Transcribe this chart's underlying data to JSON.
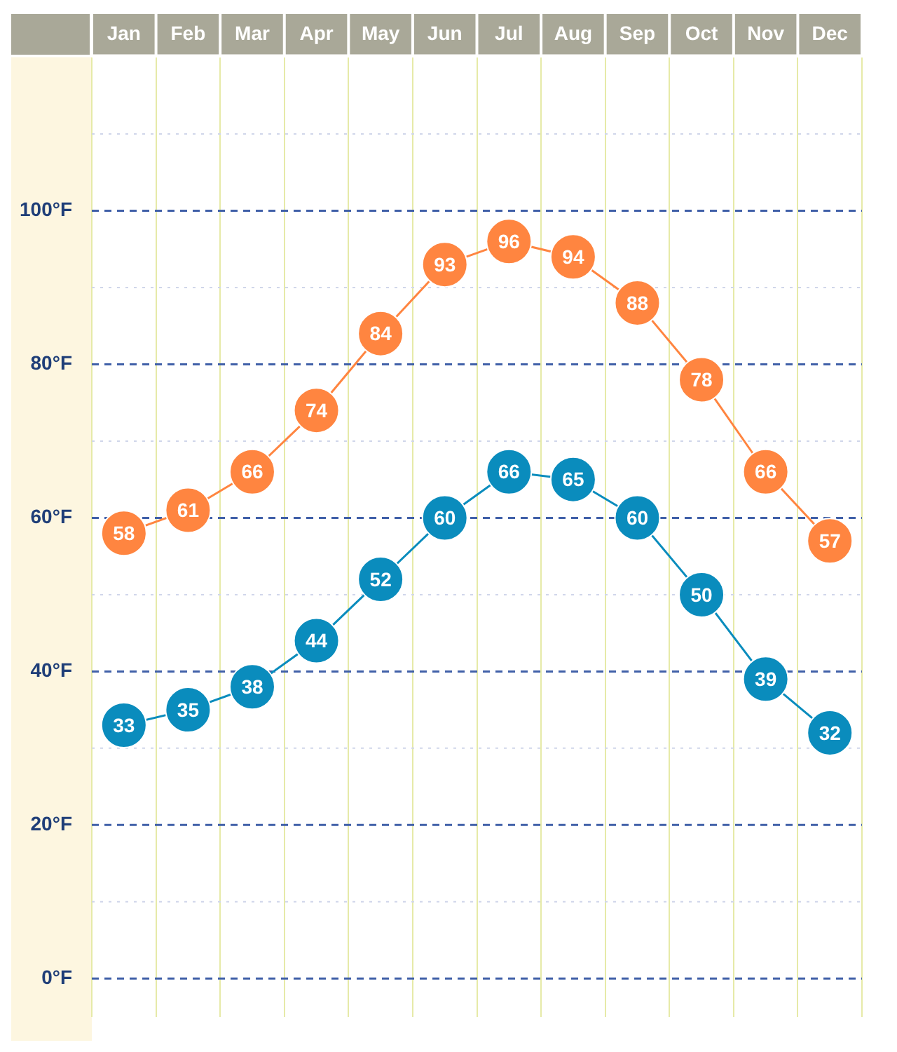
{
  "chart_data": {
    "type": "line",
    "categories": [
      "Jan",
      "Feb",
      "Mar",
      "Apr",
      "May",
      "Jun",
      "Jul",
      "Aug",
      "Sep",
      "Oct",
      "Nov",
      "Dec"
    ],
    "series": [
      {
        "color": "#ff8540",
        "values": [
          58,
          61,
          66,
          74,
          84,
          93,
          96,
          94,
          88,
          78,
          66,
          57
        ]
      },
      {
        "color": "#0a8cbd",
        "values": [
          33,
          35,
          38,
          44,
          52,
          60,
          66,
          65,
          60,
          50,
          39,
          32
        ]
      }
    ],
    "ylim": [
      -5,
      120
    ],
    "yticks": [
      {
        "value": 0,
        "label": "0°F"
      },
      {
        "value": 10,
        "label": null
      },
      {
        "value": 20,
        "label": "20°F"
      },
      {
        "value": 30,
        "label": null
      },
      {
        "value": 40,
        "label": "40°F"
      },
      {
        "value": 50,
        "label": null
      },
      {
        "value": 60,
        "label": "60°F"
      },
      {
        "value": 70,
        "label": null
      },
      {
        "value": 80,
        "label": "80°F"
      },
      {
        "value": 90,
        "label": null
      },
      {
        "value": 100,
        "label": "100°F"
      },
      {
        "value": 110,
        "label": null
      }
    ],
    "grid": true,
    "marker": "circle",
    "line_style": "solid",
    "data_labels": true,
    "legend": false
  }
}
